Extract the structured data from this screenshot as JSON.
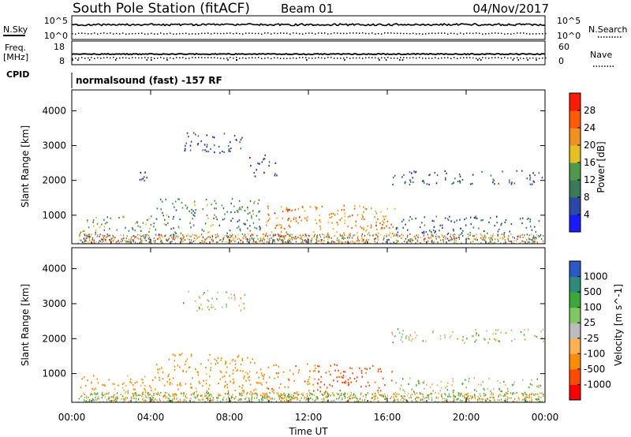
{
  "header": {
    "title": "South Pole Station (fitACF)",
    "beam": "Beam 01",
    "date": "04/Nov/2017"
  },
  "top_panels": {
    "nsky_label": "N.Sky",
    "nsky_ticks": [
      "10^5",
      "10^0"
    ],
    "nsearch_label": "N.Search",
    "nsearch_ticks": [
      "10^5",
      "10^0"
    ],
    "freq_label": "Freq.",
    "freq_unit": "[MHz]",
    "freq_ticks": [
      "18",
      "8"
    ],
    "nave_label": "Nave",
    "nave_ticks": [
      "60",
      "0"
    ],
    "cpid_label": "CPID",
    "cpid_text": "normalsound (fast) -157 RF"
  },
  "colors": {
    "power": [
      "#1a1aff",
      "#2b48a8",
      "#3a7a5a",
      "#4f9a4a",
      "#e6c020",
      "#f09020",
      "#ff5a00",
      "#ff1a00"
    ],
    "velocity": [
      "#ff0000",
      "#ff4a00",
      "#ff8c00",
      "#ffb050",
      "#bcbcbc",
      "#7ec860",
      "#3ba83a",
      "#2e8a7a",
      "#2a58c8"
    ]
  },
  "chart_data": [
    {
      "type": "heatmap",
      "name": "power",
      "ylabel": "Slant Range [km]",
      "xlabel": "",
      "xlim": [
        "00:00",
        "24:00"
      ],
      "ylim": [
        180,
        4600
      ],
      "yticks": [
        "1000",
        "2000",
        "3000",
        "4000"
      ],
      "colorbar_label": "Power [dB]",
      "colorbar_ticks": [
        "4",
        "8",
        "12",
        "16",
        "20",
        "24",
        "28"
      ],
      "regions": [
        {
          "t": [
            0.4,
            4.2
          ],
          "r": [
            500,
            1000
          ],
          "v": 14
        },
        {
          "t": [
            4.2,
            9.6
          ],
          "r": [
            500,
            1500
          ],
          "v": 12
        },
        {
          "t": [
            9.6,
            12.4
          ],
          "r": [
            300,
            1300
          ],
          "v": 22
        },
        {
          "t": [
            10.2,
            11.6
          ],
          "r": [
            700,
            1200
          ],
          "v": 26
        },
        {
          "t": [
            12.4,
            16.4
          ],
          "r": [
            400,
            1300
          ],
          "v": 21
        },
        {
          "t": [
            14.6,
            16.2
          ],
          "r": [
            600,
            1000
          ],
          "v": 26
        },
        {
          "t": [
            16.4,
            23.8
          ],
          "r": [
            500,
            1000
          ],
          "v": 8
        },
        {
          "t": [
            16.2,
            23.9
          ],
          "r": [
            1900,
            2300
          ],
          "v": 7
        },
        {
          "t": [
            3.0,
            3.8
          ],
          "r": [
            1900,
            2300
          ],
          "v": 6
        },
        {
          "t": [
            5.6,
            8.8
          ],
          "r": [
            2800,
            3400
          ],
          "v": 6
        },
        {
          "t": [
            9.0,
            10.4
          ],
          "r": [
            2100,
            2800
          ],
          "v": 5
        }
      ]
    },
    {
      "type": "heatmap",
      "name": "velocity",
      "ylabel": "Slant Range [km]",
      "xlabel": "Time UT",
      "xlim": [
        "00:00",
        "24:00"
      ],
      "xticks": [
        "00:00",
        "04:00",
        "08:00",
        "12:00",
        "16:00",
        "20:00",
        "00:00"
      ],
      "ylim": [
        180,
        4600
      ],
      "yticks": [
        "1000",
        "2000",
        "3000",
        "4000"
      ],
      "colorbar_label": "Velocity [m s^-1]",
      "colorbar_ticks": [
        "-1000",
        "-500",
        "-100",
        "-25",
        "25",
        "100",
        "500",
        "1000"
      ],
      "regions": [
        {
          "t": [
            0.4,
            4.2
          ],
          "r": [
            400,
            1000
          ],
          "v": -150
        },
        {
          "t": [
            4.2,
            9.6
          ],
          "r": [
            400,
            1600
          ],
          "v": -200
        },
        {
          "t": [
            9.6,
            12.4
          ],
          "r": [
            300,
            1300
          ],
          "v": -400
        },
        {
          "t": [
            12.4,
            16.4
          ],
          "r": [
            500,
            1300
          ],
          "v": -600
        },
        {
          "t": [
            11.6,
            13.2
          ],
          "r": [
            200,
            500
          ],
          "v": 80
        },
        {
          "t": [
            16.4,
            23.8
          ],
          "r": [
            500,
            900
          ],
          "v": 30
        },
        {
          "t": [
            16.2,
            23.9
          ],
          "r": [
            1900,
            2300
          ],
          "v": 0
        },
        {
          "t": [
            5.6,
            8.8
          ],
          "r": [
            2800,
            3400
          ],
          "v": 0
        }
      ]
    }
  ]
}
